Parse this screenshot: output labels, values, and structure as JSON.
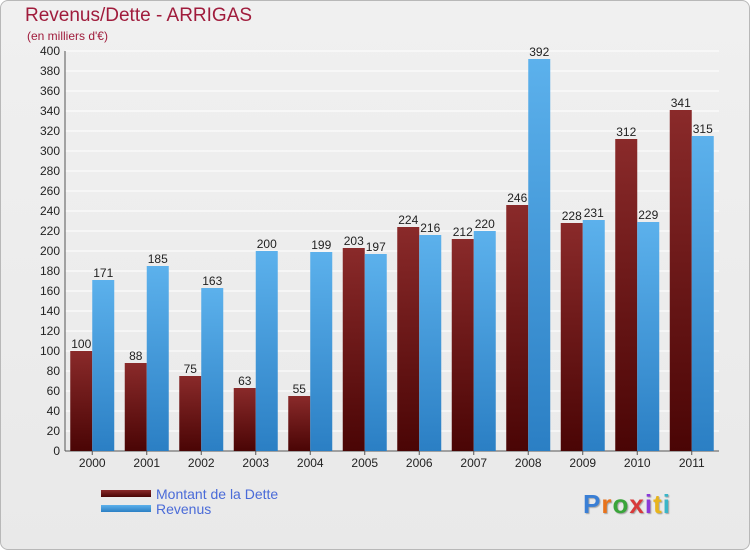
{
  "header": {
    "title": "Revenus/Dette - ARRIGAS",
    "subtitle": "(en milliers d'€)"
  },
  "legend": {
    "items": [
      {
        "label": "Montant de la Dette",
        "color": "#6b1212"
      },
      {
        "label": "Revenus",
        "color": "#4ea5e2"
      }
    ]
  },
  "logo": {
    "text": "Proxiti"
  },
  "chart_data": {
    "type": "bar",
    "title": "Revenus/Dette - ARRIGAS",
    "ylabel": "(en milliers d'€)",
    "categories": [
      "2000",
      "2001",
      "2002",
      "2003",
      "2004",
      "2005",
      "2006",
      "2007",
      "2008",
      "2009",
      "2010",
      "2011"
    ],
    "series": [
      {
        "name": "Montant de la Dette",
        "color": "#6b1212",
        "values": [
          100,
          88,
          75,
          63,
          55,
          203,
          224,
          212,
          246,
          228,
          312,
          341
        ]
      },
      {
        "name": "Revenus",
        "color": "#4ea5e2",
        "values": [
          171,
          185,
          163,
          200,
          199,
          197,
          216,
          220,
          392,
          231,
          229,
          315
        ]
      }
    ],
    "ylim": [
      0,
      400
    ],
    "ytick_step": 20,
    "grid": true,
    "legend_position": "bottom-left"
  }
}
